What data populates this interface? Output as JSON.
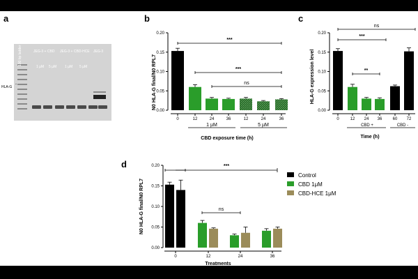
{
  "panels": {
    "a": {
      "letter": "a",
      "lane_labels": [
        "100 bp ladder",
        "JEG-3 + CBD",
        "JEG-3 + CBD-HCE",
        "JEG-3"
      ],
      "conc_labels": [
        "1 µM",
        "5 µM",
        "1 µM",
        "5 µM"
      ],
      "gene_label": "HLA-G",
      "colors": {
        "gel_bg": "#d4d4d4",
        "band": "#4a4a4a"
      }
    },
    "b": {
      "letter": "b",
      "group_labels": [
        "1 µM",
        "5 µM"
      ]
    },
    "c": {
      "letter": "c",
      "group_labels": [
        "CBD +",
        "CBD -"
      ]
    },
    "d": {
      "letter": "d"
    }
  },
  "chart_data": [
    {
      "type": "bar",
      "panel": "b",
      "categories": [
        "0",
        "12",
        "24",
        "36",
        "12",
        "24",
        "36"
      ],
      "values": [
        0.153,
        0.06,
        0.03,
        0.029,
        0.03,
        0.023,
        0.028
      ],
      "errors": [
        0.007,
        0.006,
        0.003,
        0.002,
        0.003,
        0.002,
        0.002
      ],
      "colors": [
        "#000000",
        "#2a9d2a",
        "#2a9d2a",
        "#2a9d2a",
        "#1f5a1f",
        "#1f5a1f",
        "#1f5a1f"
      ],
      "xlabel": "CBD exposure time (h)",
      "ylabel": "N0 HLA-G final/N0  RPL7",
      "ylim": [
        0,
        0.2
      ],
      "yticks": [
        "0.00",
        "0.05",
        "0.10",
        "0.15",
        "0.20"
      ],
      "annotations": [
        "***",
        "***",
        "ns"
      ]
    },
    {
      "type": "bar",
      "panel": "c",
      "categories": [
        "0",
        "12",
        "24",
        "36",
        "60",
        "72"
      ],
      "values": [
        0.153,
        0.06,
        0.03,
        0.029,
        0.062,
        0.152
      ],
      "errors": [
        0.006,
        0.007,
        0.003,
        0.003,
        0.003,
        0.009
      ],
      "colors": [
        "#000000",
        "#2a9d2a",
        "#2a9d2a",
        "#2a9d2a",
        "#000000",
        "#000000"
      ],
      "xlabel": "Time (h)",
      "ylabel": "HLA-G expression level",
      "ylim": [
        0,
        0.2
      ],
      "yticks": [
        "0.00",
        "0.05",
        "0.10",
        "0.15",
        "0.20"
      ],
      "annotations": [
        "ns",
        "***",
        "**"
      ]
    },
    {
      "type": "bar",
      "panel": "d",
      "categories": [
        "0",
        "12",
        "24",
        "36"
      ],
      "series": [
        {
          "name": "Control",
          "values": [
            0.153,
            null,
            null,
            null
          ],
          "errors": [
            0.006,
            null,
            null,
            null
          ],
          "color": "#000000"
        },
        {
          "name": "CBD 1μM",
          "values": [
            null,
            0.06,
            0.03,
            0.041
          ],
          "errors": [
            null,
            0.006,
            0.003,
            0.005
          ],
          "color": "#2a9d2a"
        },
        {
          "name": "CBD-HCE 1μM",
          "values": [
            null,
            0.046,
            0.036,
            0.046
          ],
          "errors": [
            null,
            0.002,
            0.014,
            0.004
          ],
          "color": "#9b8c5a"
        }
      ],
      "extra_bar": {
        "category": "0",
        "value": 0.14,
        "error": 0.024,
        "color": "#000000"
      },
      "xlabel": "Treatments",
      "ylabel": "N0 HLA-G final/N0  RPL7",
      "ylim": [
        0,
        0.2
      ],
      "yticks": [
        "0.00",
        "0.05",
        "0.10",
        "0.15",
        "0.20"
      ],
      "annotations": [
        "***",
        "ns"
      ],
      "legend_position": "top-right"
    }
  ]
}
